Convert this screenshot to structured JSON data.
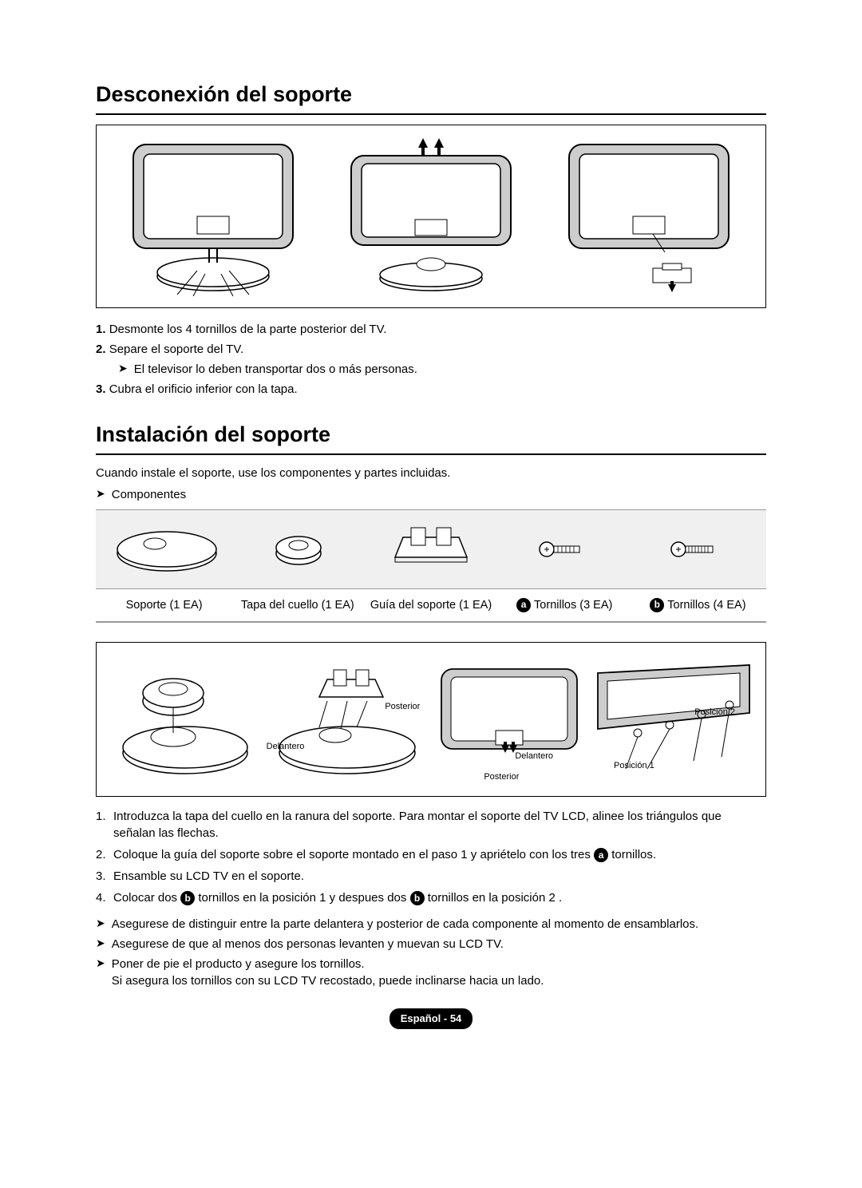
{
  "section1": {
    "title": "Desconexión del soporte",
    "steps": [
      {
        "num": "1.",
        "text": "Desmonte los 4 tornillos de la parte posterior del TV."
      },
      {
        "num": "2.",
        "text": "Separe el soporte del TV."
      },
      {
        "num": "3.",
        "text": "Cubra el orificio inferior con la tapa."
      }
    ],
    "sub_note": "El televisor lo deben transportar dos o más personas.",
    "figure": {
      "box_border": "#000000",
      "panels": 3,
      "tv_outline": "#000000",
      "fill": "#ffffff",
      "grey": "#cdcdcd",
      "arrow": "#000000"
    }
  },
  "section2": {
    "title": "Instalación del soporte",
    "intro": "Cuando instale el soporte, use los componentes y partes incluidas.",
    "comp_header": "Componentes",
    "components": [
      {
        "label": "Soporte (1 EA)"
      },
      {
        "label": "Tapa del cuello (1 EA)"
      },
      {
        "label": "Guía del soporte (1 EA)"
      },
      {
        "circle": "a",
        "label": "Tornillos (3 EA)"
      },
      {
        "circle": "b",
        "label": "Tornillos (4 EA)"
      }
    ],
    "assembly_labels": {
      "posterior": "Posterior",
      "delantero": "Delantero",
      "posicion1": "Posición 1",
      "posicion2": "Posición 2"
    },
    "instructions": [
      {
        "num": "1.",
        "html": "Introduzca la tapa del cuello en la ranura del soporte. Para montar el soporte del TV LCD, alinee los triángulos que señalan las flechas."
      },
      {
        "num": "2.",
        "html": "Coloque la guía del soporte sobre el soporte montado en el paso 1 y apriételo con los tres [A] tornillos."
      },
      {
        "num": "3.",
        "html": "Ensamble su LCD TV en el soporte."
      },
      {
        "num": "4.",
        "html": "Colocar dos [B] tornillos en la posición 1  y despues dos [B] tornillos en la posición 2 ."
      }
    ],
    "notes": [
      "Asegurese de distinguir entre la parte delantera y posterior de cada componente al momento de ensamblarlos.",
      "Asegurese de que al menos dos personas levanten y muevan su LCD TV.",
      "Poner de pie el producto y asegure los tornillos.\nSi asegura los tornillos con su LCD TV recostado, puede inclinarse hacia un lado."
    ],
    "colors": {
      "grey_bg": "#f0f0f0",
      "border": "#999999",
      "circle_bg": "#000000",
      "circle_fg": "#ffffff"
    }
  },
  "page_badge": "Español - 54"
}
